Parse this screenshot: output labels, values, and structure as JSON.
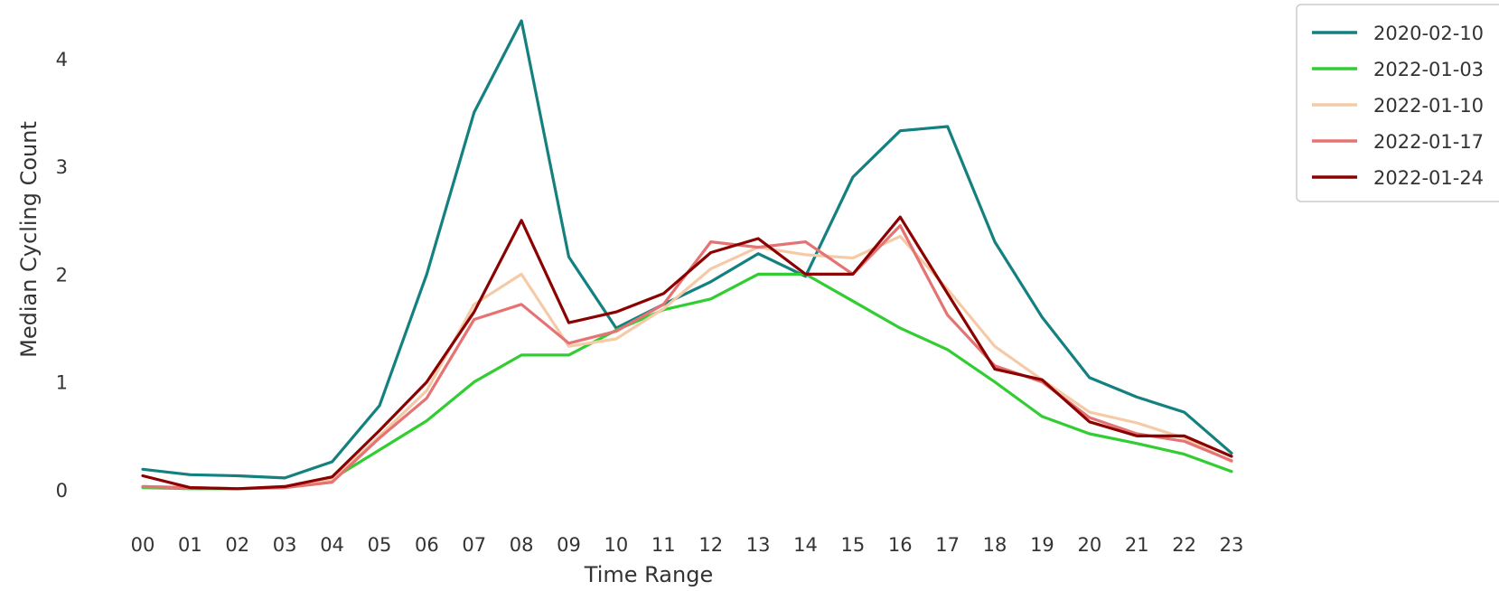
{
  "chart_data": {
    "type": "line",
    "xlabel": "Time Range",
    "ylabel": "Median Cycling Count",
    "categories": [
      "00",
      "01",
      "02",
      "03",
      "04",
      "05",
      "06",
      "07",
      "08",
      "09",
      "10",
      "11",
      "12",
      "13",
      "14",
      "15",
      "16",
      "17",
      "18",
      "19",
      "20",
      "21",
      "22",
      "23"
    ],
    "yticks": [
      0,
      1,
      2,
      3,
      4
    ],
    "ylim": [
      -0.25,
      4.5
    ],
    "grid": false,
    "legend_position": "outside-top-right",
    "series": [
      {
        "name": "2020-02-10",
        "color": "#148080",
        "values": [
          0.19,
          0.14,
          0.13,
          0.11,
          0.26,
          0.78,
          2.0,
          3.5,
          4.35,
          2.16,
          1.5,
          1.72,
          1.93,
          2.19,
          1.98,
          2.9,
          3.33,
          3.37,
          2.3,
          1.6,
          1.04,
          0.86,
          0.72,
          0.34
        ]
      },
      {
        "name": "2022-01-03",
        "color": "#32cd32",
        "values": [
          0.02,
          0.01,
          0.01,
          0.02,
          0.1,
          0.37,
          0.64,
          1.0,
          1.25,
          1.25,
          1.48,
          1.67,
          1.77,
          2.0,
          2.0,
          1.75,
          1.5,
          1.3,
          1.0,
          0.68,
          0.52,
          0.43,
          0.33,
          0.17
        ]
      },
      {
        "name": "2022-01-10",
        "color": "#f5cba7",
        "values": [
          0.03,
          0.02,
          0.01,
          0.03,
          0.09,
          0.5,
          0.92,
          1.72,
          2.0,
          1.33,
          1.4,
          1.68,
          2.05,
          2.25,
          2.18,
          2.15,
          2.35,
          1.86,
          1.33,
          1.02,
          0.72,
          0.62,
          0.48,
          0.26
        ]
      },
      {
        "name": "2022-01-17",
        "color": "#e57373",
        "values": [
          0.03,
          0.02,
          0.01,
          0.02,
          0.07,
          0.48,
          0.85,
          1.58,
          1.72,
          1.36,
          1.47,
          1.72,
          2.3,
          2.25,
          2.3,
          2.0,
          2.45,
          1.62,
          1.15,
          1.0,
          0.67,
          0.52,
          0.45,
          0.27
        ]
      },
      {
        "name": "2022-01-24",
        "color": "#8b0000",
        "values": [
          0.13,
          0.02,
          0.01,
          0.03,
          0.12,
          0.55,
          1.0,
          1.65,
          2.5,
          1.55,
          1.65,
          1.82,
          2.2,
          2.33,
          2.0,
          2.0,
          2.53,
          1.82,
          1.12,
          1.02,
          0.63,
          0.5,
          0.5,
          0.31
        ]
      }
    ]
  }
}
